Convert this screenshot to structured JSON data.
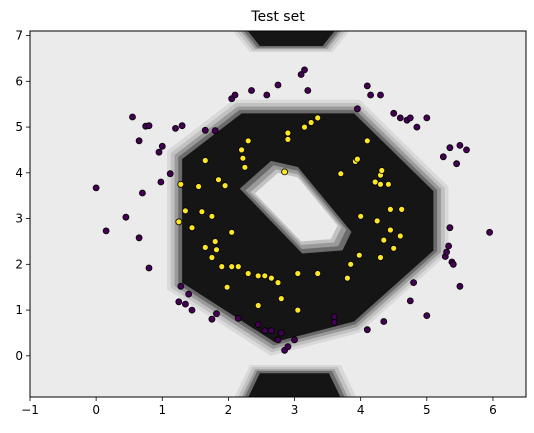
{
  "chart_data": {
    "type": "scatter",
    "title": "Test set",
    "xlabel": "",
    "ylabel": "",
    "xlim": [
      -1,
      6.5
    ],
    "ylim": [
      -0.9,
      7.1
    ],
    "xticks": [
      -1,
      0,
      1,
      2,
      3,
      4,
      5,
      6
    ],
    "yticks": [
      0,
      1,
      2,
      3,
      4,
      5,
      6,
      7
    ],
    "grid": false,
    "background": "decision boundary contour (dark = inner class region, light gray = outer)",
    "colors": {
      "class_0": "#440154",
      "class_1": "#fde725",
      "region_inner": "#151515",
      "region_outer": "#ebebeb"
    },
    "series": [
      {
        "class": 0,
        "points": [
          [
            0.0,
            3.67
          ],
          [
            0.15,
            2.73
          ],
          [
            0.45,
            3.03
          ],
          [
            0.55,
            5.22
          ],
          [
            0.65,
            2.58
          ],
          [
            0.65,
            4.7
          ],
          [
            0.7,
            3.56
          ],
          [
            0.75,
            5.02
          ],
          [
            0.8,
            5.03
          ],
          [
            0.8,
            1.92
          ],
          [
            0.95,
            4.45
          ],
          [
            0.98,
            3.8
          ],
          [
            1.0,
            4.58
          ],
          [
            1.12,
            3.98
          ],
          [
            1.2,
            4.97
          ],
          [
            1.25,
            1.18
          ],
          [
            1.28,
            1.52
          ],
          [
            1.3,
            5.03
          ],
          [
            1.35,
            1.13
          ],
          [
            1.4,
            1.35
          ],
          [
            1.45,
            1.0
          ],
          [
            1.65,
            4.93
          ],
          [
            1.75,
            0.8
          ],
          [
            1.8,
            4.92
          ],
          [
            1.82,
            0.92
          ],
          [
            2.05,
            5.62
          ],
          [
            2.1,
            5.7
          ],
          [
            2.15,
            0.82
          ],
          [
            2.35,
            5.8
          ],
          [
            2.45,
            0.68
          ],
          [
            2.55,
            0.55
          ],
          [
            2.58,
            5.7
          ],
          [
            2.65,
            0.55
          ],
          [
            2.75,
            5.92
          ],
          [
            2.75,
            0.35
          ],
          [
            2.8,
            0.5
          ],
          [
            2.85,
            0.12
          ],
          [
            2.9,
            0.2
          ],
          [
            3.0,
            0.35
          ],
          [
            3.1,
            6.15
          ],
          [
            3.15,
            6.25
          ],
          [
            3.2,
            5.8
          ],
          [
            3.6,
            0.85
          ],
          [
            3.6,
            0.73
          ],
          [
            3.95,
            5.4
          ],
          [
            4.1,
            5.9
          ],
          [
            4.1,
            0.57
          ],
          [
            4.15,
            5.7
          ],
          [
            4.3,
            5.7
          ],
          [
            4.35,
            0.75
          ],
          [
            4.5,
            5.3
          ],
          [
            4.6,
            5.2
          ],
          [
            4.7,
            5.15
          ],
          [
            4.75,
            5.2
          ],
          [
            4.75,
            1.2
          ],
          [
            4.8,
            1.6
          ],
          [
            4.85,
            5.0
          ],
          [
            5.0,
            5.2
          ],
          [
            5.0,
            0.88
          ],
          [
            5.25,
            4.35
          ],
          [
            5.28,
            2.17
          ],
          [
            5.3,
            2.27
          ],
          [
            5.33,
            2.4
          ],
          [
            5.35,
            2.8
          ],
          [
            5.35,
            4.55
          ],
          [
            5.38,
            2.05
          ],
          [
            5.4,
            2.0
          ],
          [
            5.45,
            4.2
          ],
          [
            5.5,
            4.6
          ],
          [
            5.5,
            1.52
          ],
          [
            5.6,
            4.5
          ],
          [
            5.95,
            2.7
          ]
        ]
      },
      {
        "class": 1,
        "points": [
          [
            1.25,
            2.93
          ],
          [
            1.28,
            3.75
          ],
          [
            1.35,
            3.17
          ],
          [
            1.45,
            2.8
          ],
          [
            1.55,
            3.7
          ],
          [
            1.6,
            3.15
          ],
          [
            1.65,
            4.27
          ],
          [
            1.65,
            2.37
          ],
          [
            1.75,
            3.05
          ],
          [
            1.75,
            2.15
          ],
          [
            1.8,
            2.5
          ],
          [
            1.82,
            2.32
          ],
          [
            1.85,
            3.85
          ],
          [
            1.9,
            1.95
          ],
          [
            1.95,
            3.72
          ],
          [
            1.98,
            1.5
          ],
          [
            2.05,
            2.7
          ],
          [
            2.05,
            1.95
          ],
          [
            2.15,
            1.95
          ],
          [
            2.2,
            4.5
          ],
          [
            2.22,
            4.32
          ],
          [
            2.25,
            4.12
          ],
          [
            2.3,
            4.7
          ],
          [
            2.3,
            1.8
          ],
          [
            2.45,
            1.1
          ],
          [
            2.45,
            1.75
          ],
          [
            2.55,
            1.75
          ],
          [
            2.65,
            1.7
          ],
          [
            2.75,
            1.6
          ],
          [
            2.8,
            1.25
          ],
          [
            2.85,
            4.02
          ],
          [
            2.9,
            4.73
          ],
          [
            2.9,
            4.87
          ],
          [
            3.05,
            1.0
          ],
          [
            3.05,
            1.8
          ],
          [
            3.15,
            5.0
          ],
          [
            3.25,
            5.1
          ],
          [
            3.35,
            5.2
          ],
          [
            3.35,
            1.8
          ],
          [
            3.7,
            3.98
          ],
          [
            3.8,
            1.7
          ],
          [
            3.85,
            2.0
          ],
          [
            3.92,
            4.25
          ],
          [
            3.95,
            4.3
          ],
          [
            3.98,
            2.2
          ],
          [
            4.0,
            3.05
          ],
          [
            4.1,
            4.7
          ],
          [
            4.22,
            3.8
          ],
          [
            4.25,
            2.95
          ],
          [
            4.3,
            3.75
          ],
          [
            4.3,
            3.95
          ],
          [
            4.3,
            2.15
          ],
          [
            4.32,
            4.05
          ],
          [
            4.35,
            2.53
          ],
          [
            4.42,
            3.75
          ],
          [
            4.45,
            3.2
          ],
          [
            4.45,
            2.75
          ],
          [
            4.5,
            2.35
          ],
          [
            4.6,
            2.62
          ],
          [
            4.62,
            3.2
          ]
        ]
      }
    ]
  }
}
